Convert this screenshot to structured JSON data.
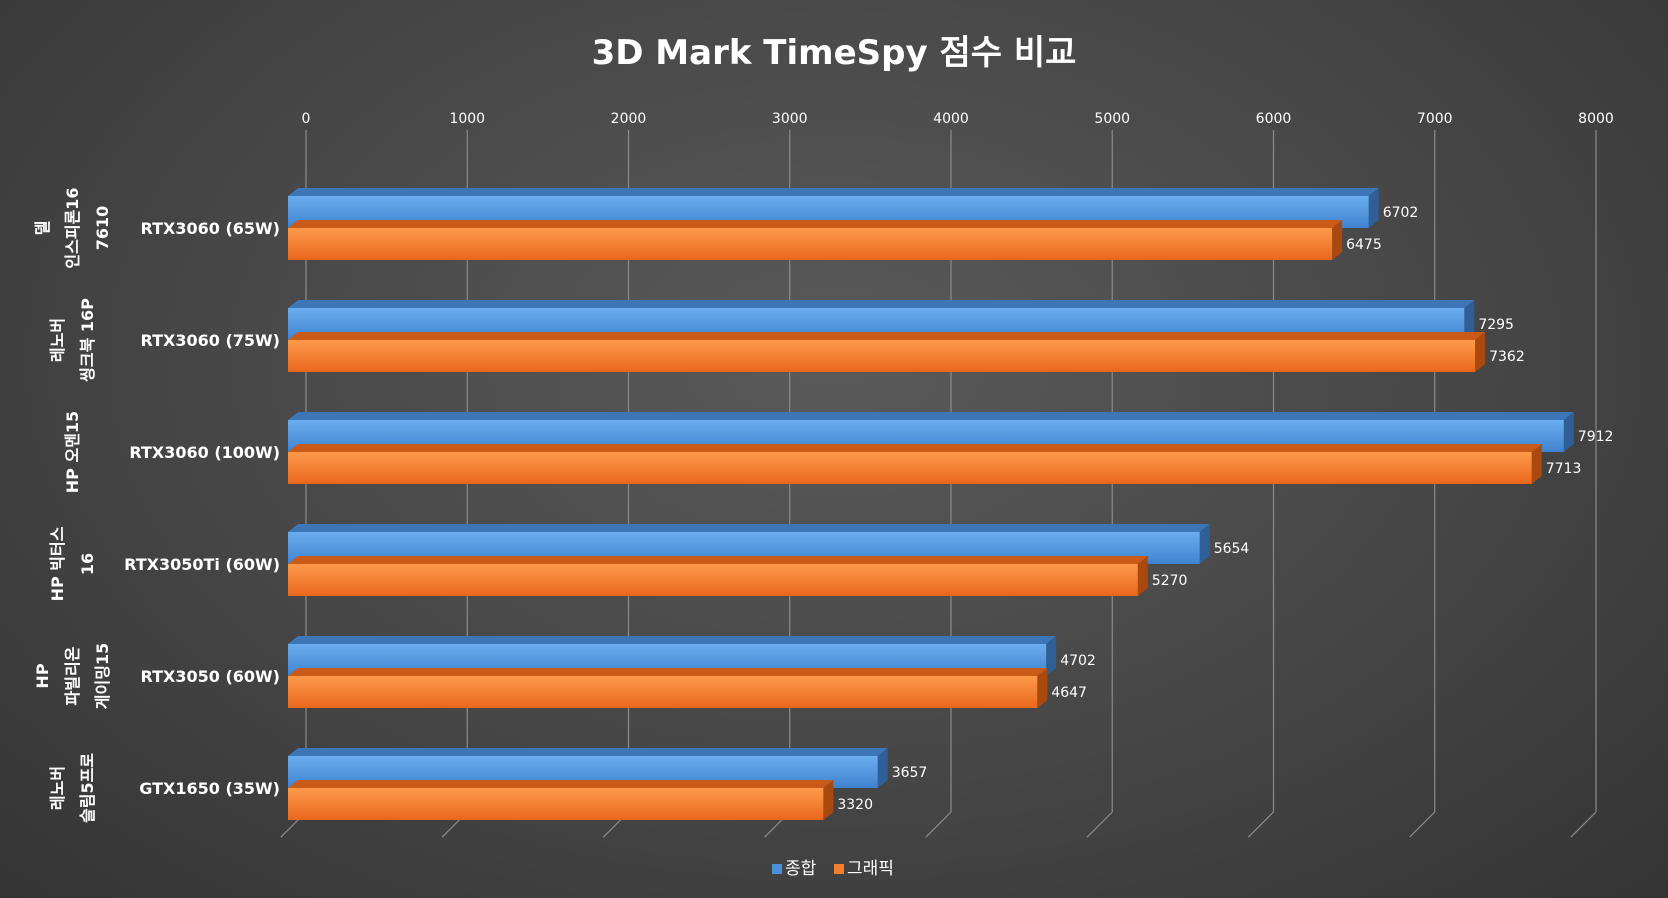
{
  "chart_data": {
    "type": "bar",
    "orientation": "horizontal",
    "style": "3d-clustered",
    "title": "3D Mark TimeSpy 점수 비교",
    "xlim": [
      0,
      8000
    ],
    "x_ticks": [
      0,
      1000,
      2000,
      3000,
      4000,
      5000,
      6000,
      7000,
      8000
    ],
    "x_tick_labels": [
      "0",
      "1000",
      "2000",
      "3000",
      "4000",
      "5000",
      "6000",
      "7000",
      "8000"
    ],
    "x_axis_position": "top",
    "grid": true,
    "legend_position": "bottom",
    "categories": [
      "RTX3060 (65W)",
      "RTX3060 (75W)",
      "RTX3060 (100W)",
      "RTX3050Ti (60W)",
      "RTX3050 (60W)",
      "GTX1650 (35W)"
    ],
    "groups": [
      [
        "델",
        "인스피론16",
        "7610"
      ],
      [
        "레노버",
        "씽크북 16P"
      ],
      [
        "HP 오멘15"
      ],
      [
        "HP 빅터스",
        "16"
      ],
      [
        "HP",
        "파빌리온",
        "게이밍15"
      ],
      [
        "레노버",
        "슬림5프로"
      ]
    ],
    "series": [
      {
        "name": "종합",
        "color": "#4a90d9",
        "values": [
          6702,
          7295,
          7912,
          5654,
          4702,
          3657
        ]
      },
      {
        "name": "그래픽",
        "color": "#f07e2a",
        "values": [
          6475,
          7362,
          7713,
          5270,
          4647,
          3320
        ]
      }
    ]
  }
}
